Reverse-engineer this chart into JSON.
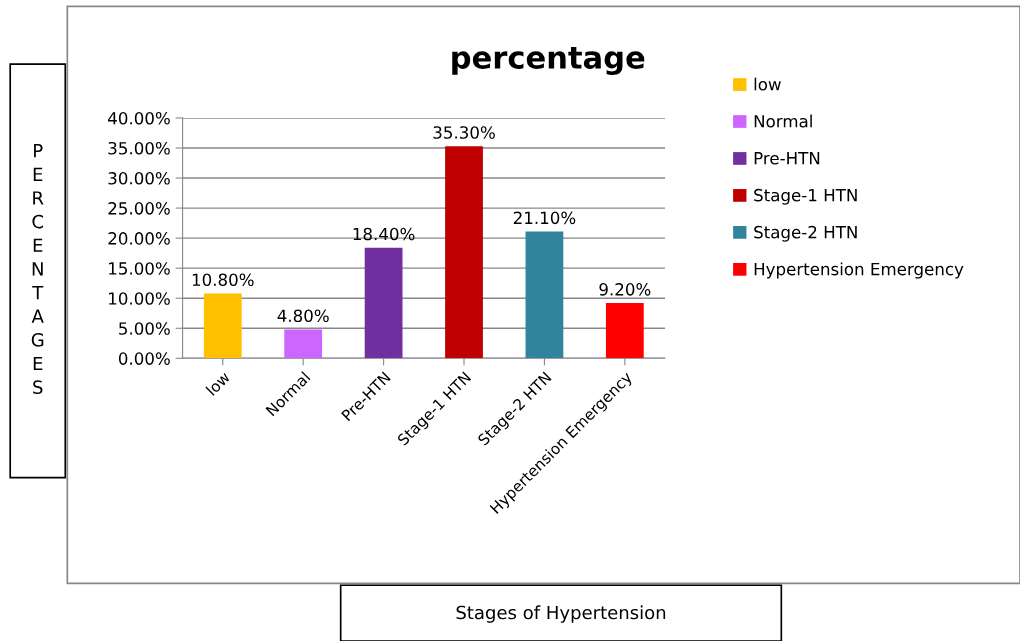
{
  "chart_data": {
    "type": "bar",
    "title": "percentage",
    "ylabel": "PERCENTAGES",
    "annotations": [
      "Stages of Hypertension"
    ],
    "categories": [
      "low",
      "Normal",
      "Pre-HTN",
      "Stage-1 HTN",
      "Stage-2 HTN",
      "Hypertension Emergency"
    ],
    "series": [
      {
        "name": "low",
        "color": "#ffc000",
        "values": [
          10.8,
          null,
          null,
          null,
          null,
          null
        ],
        "value_labels": [
          "10.80%",
          null,
          null,
          null,
          null,
          null
        ]
      },
      {
        "name": "Normal",
        "color": "#cc66ff",
        "values": [
          null,
          4.8,
          null,
          null,
          null,
          null
        ],
        "value_labels": [
          null,
          "4.80%",
          null,
          null,
          null,
          null
        ]
      },
      {
        "name": "Pre-HTN",
        "color": "#7030a0",
        "values": [
          null,
          null,
          18.4,
          null,
          null,
          null
        ],
        "value_labels": [
          null,
          null,
          "18.40%",
          null,
          null,
          null
        ]
      },
      {
        "name": "Stage-1 HTN",
        "color": "#c00000",
        "values": [
          null,
          null,
          null,
          35.3,
          null,
          null
        ],
        "value_labels": [
          null,
          null,
          null,
          "35.30%",
          null,
          null
        ]
      },
      {
        "name": "Stage-2 HTN",
        "color": "#31849b",
        "values": [
          null,
          null,
          null,
          null,
          21.1,
          null
        ],
        "value_labels": [
          null,
          null,
          null,
          null,
          "21.10%",
          null
        ]
      },
      {
        "name": "Hypertension Emergency",
        "color": "#ff0000",
        "values": [
          null,
          null,
          null,
          null,
          null,
          9.2
        ],
        "value_labels": [
          null,
          null,
          null,
          null,
          null,
          "9.20%"
        ]
      }
    ],
    "ylim": [
      0,
      40
    ],
    "yticks": [
      {
        "value": 0,
        "label": "0.00%"
      },
      {
        "value": 5,
        "label": "5.00%"
      },
      {
        "value": 10,
        "label": "10.00%"
      },
      {
        "value": 15,
        "label": "15.00%"
      },
      {
        "value": 20,
        "label": "20.00%"
      },
      {
        "value": 25,
        "label": "25.00%"
      },
      {
        "value": 30,
        "label": "30.00%"
      },
      {
        "value": 35,
        "label": "35.00%"
      },
      {
        "value": 40,
        "label": "40.00%"
      }
    ],
    "grid": "y",
    "legend": "right"
  }
}
